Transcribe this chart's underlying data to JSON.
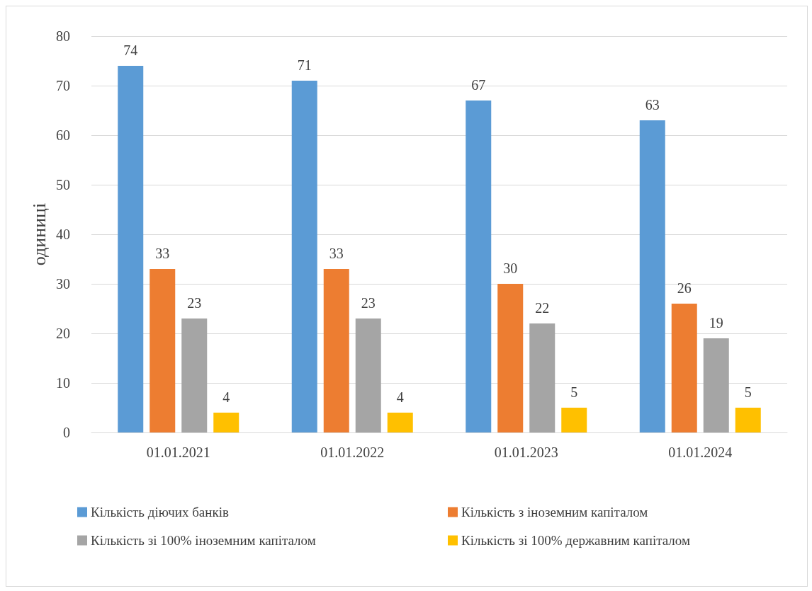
{
  "chart_data": {
    "type": "bar",
    "ylabel": "одиниці",
    "categories": [
      "01.01.2021",
      "01.01.2022",
      "01.01.2023",
      "01.01.2024"
    ],
    "series": [
      {
        "name": "Кількість діючих банків",
        "color": "#5b9bd5",
        "values": [
          74,
          71,
          67,
          63
        ]
      },
      {
        "name": "Кількість з іноземним капіталом",
        "color": "#ed7d31",
        "values": [
          33,
          33,
          30,
          26
        ]
      },
      {
        "name": "Кількість зі 100% іноземним капіталом",
        "color": "#a5a5a5",
        "values": [
          23,
          23,
          22,
          19
        ]
      },
      {
        "name": "Кількість зі 100% державним капіталом",
        "color": "#ffc000",
        "values": [
          4,
          4,
          5,
          5
        ]
      }
    ],
    "ylim": [
      0,
      80
    ],
    "yticks": [
      0,
      10,
      20,
      30,
      40,
      50,
      60,
      70,
      80
    ],
    "grid": "y",
    "data_labels": true,
    "legend": "bottom"
  }
}
